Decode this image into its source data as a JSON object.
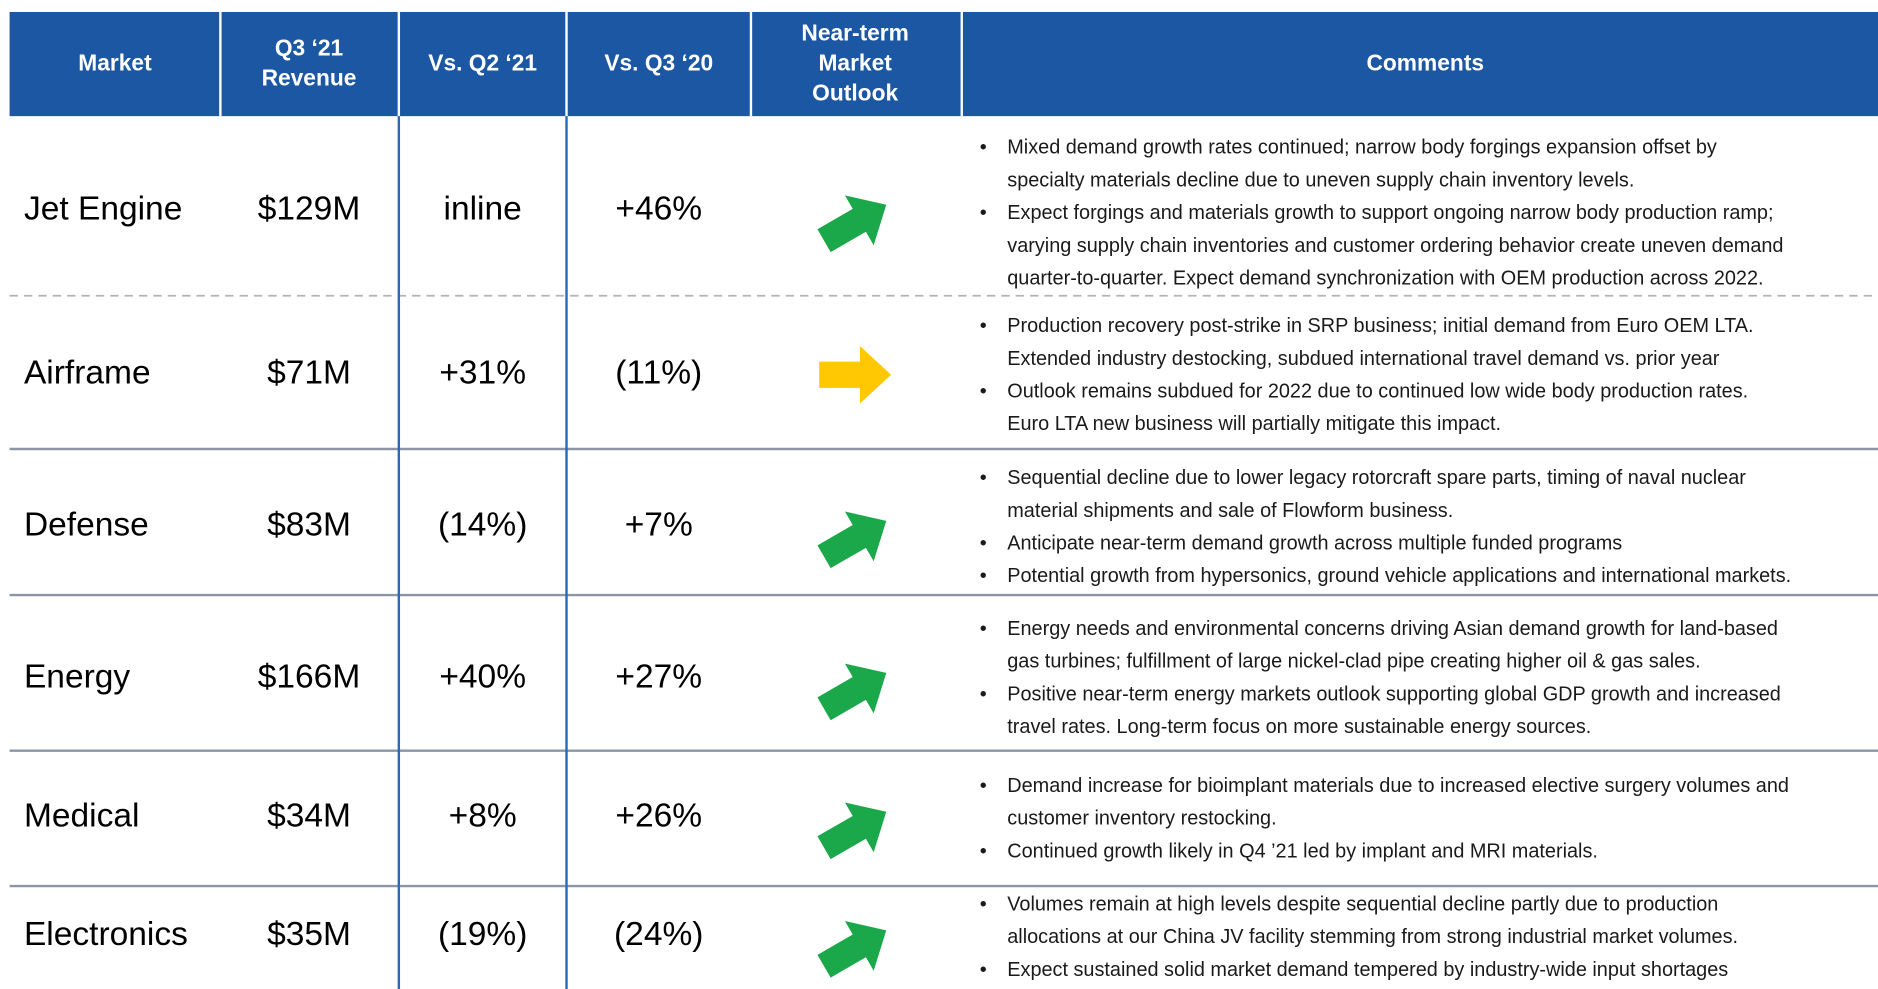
{
  "table": {
    "header": [
      [
        "Market"
      ],
      [
        "Q3 ‘21",
        "Revenue"
      ],
      [
        "Vs. Q2 ‘21"
      ],
      [
        "Vs. Q3 ‘20"
      ],
      [
        "Near-term",
        "Market",
        "Outlook"
      ],
      [
        "Comments"
      ]
    ],
    "rows": [
      {
        "market": "Jet Engine",
        "revenue": "$129M",
        "vs_q2": "inline",
        "vs_q3": "+46%",
        "arrow_color": "#1aa84a",
        "comments": [
          [
            "Mixed demand growth rates continued; narrow body forgings expansion offset by",
            "specialty materials decline due to uneven supply chain inventory levels."
          ],
          [
            "Expect forgings and materials growth to support ongoing narrow body production ramp;",
            "varying supply chain inventories and customer ordering behavior create uneven demand",
            "quarter-to-quarter.  Expect demand synchronization with OEM production across 2022."
          ]
        ]
      },
      {
        "market": "Airframe",
        "revenue": "$71M",
        "vs_q2": "+31%",
        "vs_q3": "(11%)",
        "arrow_color": "#ffc800",
        "comments": [
          [
            "Production recovery post-strike in SRP business; initial demand from Euro OEM LTA.",
            "Extended industry destocking, subdued international travel demand vs. prior year"
          ],
          [
            "Outlook remains subdued for 2022 due to continued low wide body production rates.",
            "Euro LTA new business will partially mitigate this impact."
          ]
        ]
      },
      {
        "market": "Defense",
        "revenue": "$83M",
        "vs_q2": "(14%)",
        "vs_q3": "+7%",
        "arrow_color": "#1aa84a",
        "comments": [
          [
            "Sequential decline due to lower legacy rotorcraft spare parts, timing of naval nuclear",
            "material shipments and sale of Flowform business."
          ],
          [
            "Anticipate near-term demand growth across multiple funded programs"
          ],
          [
            "Potential growth from hypersonics, ground vehicle applications and international markets."
          ]
        ]
      },
      {
        "market": "Energy",
        "revenue": "$166M",
        "vs_q2": "+40%",
        "vs_q3": "+27%",
        "arrow_color": "#1aa84a",
        "comments": [
          [
            "Energy needs and environmental concerns driving Asian demand growth for land-based",
            "gas turbines; fulfillment of large nickel-clad pipe creating higher oil & gas sales."
          ],
          [
            "Positive near-term energy markets outlook supporting global GDP growth and increased",
            "travel rates.  Long-term focus on more sustainable energy sources."
          ]
        ]
      },
      {
        "market": "Medical",
        "revenue": "$34M",
        "vs_q2": "+8%",
        "vs_q3": "+26%",
        "arrow_color": "#1aa84a",
        "comments": [
          [
            "Demand increase for bioimplant materials due to increased elective surgery volumes and",
            "customer inventory restocking."
          ],
          [
            "Continued growth likely in Q4 ’21 led by implant and MRI materials."
          ]
        ]
      },
      {
        "market": "Electronics",
        "revenue": "$35M",
        "vs_q2": "(19%)",
        "vs_q3": "(24%)",
        "arrow_color": "#1aa84a",
        "comments": [
          [
            "Volumes remain at high levels despite sequential decline partly due to production",
            "allocations at our China JV facility stemming from strong industrial market volumes."
          ],
          [
            "Expect sustained solid market demand tempered by industry-wide input shortages"
          ]
        ]
      }
    ]
  }
}
